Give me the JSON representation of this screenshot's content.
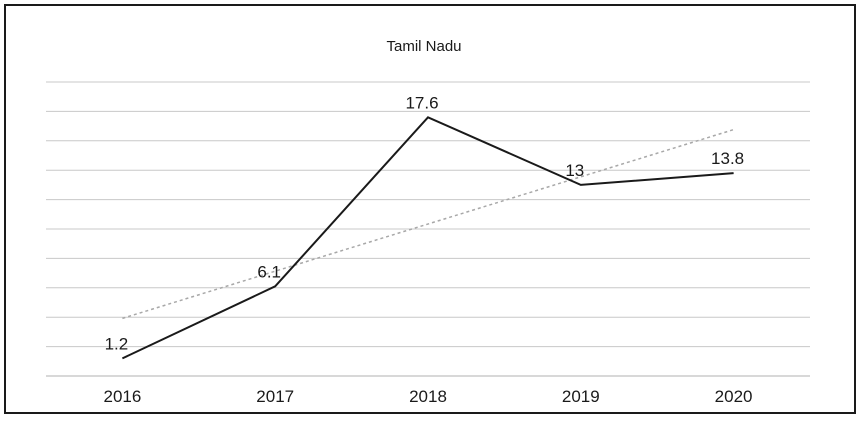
{
  "chart_data": {
    "type": "line",
    "title": "Tamil Nadu",
    "categories": [
      "2016",
      "2017",
      "2018",
      "2019",
      "2020"
    ],
    "series": [
      {
        "values": [
          1.2,
          6.1,
          17.6,
          13,
          13.8
        ],
        "data_labels": [
          "1.2",
          "6.1",
          "17.6",
          "13",
          "13.8"
        ]
      }
    ],
    "trendline": {
      "style": "dotted",
      "type": "linear"
    },
    "ylim": [
      0,
      20
    ],
    "grid": true,
    "legend": "none",
    "colors": {
      "line": "#1a1a1a",
      "grid": "#c8c8c8",
      "trend": "#a8a8a8"
    }
  }
}
